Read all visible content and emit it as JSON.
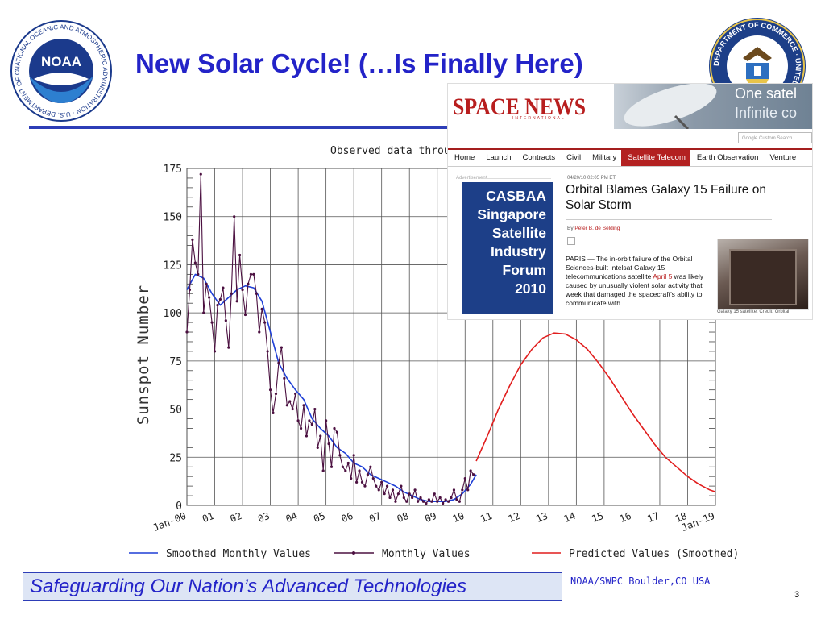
{
  "title": "New Solar Cycle! (…Is Finally Here)",
  "logos": {
    "noaa_text": "NOAA",
    "noaa_ring": "NATIONAL OCEANIC AND ATMOSPHERIC ADMINISTRATION · U.S. DEPARTMENT OF COMMERCE",
    "doc_ring": "DEPARTMENT OF COMMERCE · UNITED STATES OF AMERICA"
  },
  "chart_data": {
    "type": "line",
    "title": "Observed data throu",
    "ylabel": "Sunspot Number",
    "ylim": [
      0,
      175
    ],
    "yticks": [
      0,
      25,
      50,
      75,
      100,
      125,
      150,
      175
    ],
    "xlim": [
      2000,
      2019
    ],
    "xtick_labels": [
      "Jan-00",
      "01",
      "02",
      "03",
      "04",
      "05",
      "06",
      "07",
      "08",
      "09",
      "10",
      "11",
      "12",
      "13",
      "14",
      "15",
      "16",
      "17",
      "18",
      "Jan-19"
    ],
    "grid": true,
    "legend": "bottom",
    "series": [
      {
        "name": "Smoothed Monthly Values",
        "color": "#1f3fd6",
        "x": [
          2000.0,
          2000.3,
          2000.6,
          2000.9,
          2001.2,
          2001.5,
          2001.8,
          2002.1,
          2002.4,
          2002.7,
          2003.0,
          2003.3,
          2003.6,
          2003.9,
          2004.2,
          2004.5,
          2004.8,
          2005.1,
          2005.4,
          2005.7,
          2006.0,
          2006.3,
          2006.6,
          2006.9,
          2007.2,
          2007.5,
          2007.8,
          2008.1,
          2008.4,
          2008.7,
          2009.0,
          2009.3,
          2009.6,
          2009.9,
          2010.2,
          2010.4
        ],
        "values": [
          112,
          120,
          118,
          110,
          104,
          108,
          112,
          114,
          113,
          106,
          90,
          74,
          66,
          60,
          55,
          45,
          40,
          36,
          30,
          27,
          22,
          20,
          16,
          14,
          12,
          10,
          7,
          5,
          3,
          2,
          2,
          2,
          3,
          6,
          11,
          16
        ]
      },
      {
        "name": "Monthly Values",
        "color": "#4b1040",
        "x": [
          2000.0,
          2000.1,
          2000.2,
          2000.3,
          2000.4,
          2000.5,
          2000.6,
          2000.7,
          2000.8,
          2000.9,
          2001.0,
          2001.1,
          2001.2,
          2001.3,
          2001.4,
          2001.5,
          2001.6,
          2001.7,
          2001.8,
          2001.9,
          2002.0,
          2002.1,
          2002.2,
          2002.3,
          2002.4,
          2002.5,
          2002.6,
          2002.7,
          2002.8,
          2002.9,
          2003.0,
          2003.1,
          2003.2,
          2003.3,
          2003.4,
          2003.5,
          2003.6,
          2003.7,
          2003.8,
          2003.9,
          2004.0,
          2004.1,
          2004.2,
          2004.3,
          2004.4,
          2004.5,
          2004.6,
          2004.7,
          2004.8,
          2004.9,
          2005.0,
          2005.1,
          2005.2,
          2005.3,
          2005.4,
          2005.5,
          2005.6,
          2005.7,
          2005.8,
          2005.9,
          2006.0,
          2006.1,
          2006.2,
          2006.3,
          2006.4,
          2006.5,
          2006.6,
          2006.7,
          2006.8,
          2006.9,
          2007.0,
          2007.1,
          2007.2,
          2007.3,
          2007.4,
          2007.5,
          2007.6,
          2007.7,
          2007.8,
          2007.9,
          2008.0,
          2008.1,
          2008.2,
          2008.3,
          2008.4,
          2008.5,
          2008.6,
          2008.7,
          2008.8,
          2008.9,
          2009.0,
          2009.1,
          2009.2,
          2009.3,
          2009.4,
          2009.5,
          2009.6,
          2009.7,
          2009.8,
          2009.9,
          2010.0,
          2010.1,
          2010.2,
          2010.3
        ],
        "values": [
          90,
          112,
          138,
          126,
          120,
          172,
          100,
          115,
          108,
          95,
          80,
          104,
          107,
          113,
          96,
          82,
          110,
          150,
          106,
          130,
          112,
          99,
          115,
          120,
          120,
          110,
          90,
          102,
          95,
          80,
          60,
          48,
          58,
          74,
          82,
          66,
          52,
          54,
          50,
          58,
          44,
          40,
          52,
          36,
          44,
          42,
          50,
          30,
          36,
          18,
          44,
          32,
          20,
          40,
          38,
          26,
          20,
          18,
          22,
          14,
          26,
          12,
          18,
          12,
          10,
          16,
          20,
          14,
          10,
          8,
          12,
          6,
          10,
          4,
          8,
          2,
          6,
          10,
          4,
          2,
          6,
          4,
          8,
          2,
          4,
          2,
          1,
          3,
          2,
          6,
          2,
          4,
          1,
          3,
          2,
          4,
          8,
          3,
          2,
          8,
          14,
          8,
          18,
          16
        ]
      },
      {
        "name": "Predicted Values (Smoothed)",
        "color": "#e11d1d",
        "x": [
          2010.4,
          2010.8,
          2011.2,
          2011.6,
          2012.0,
          2012.4,
          2012.8,
          2013.2,
          2013.6,
          2014.0,
          2014.4,
          2014.8,
          2015.2,
          2015.6,
          2016.0,
          2016.4,
          2016.8,
          2017.2,
          2017.6,
          2018.0,
          2018.4,
          2018.8,
          2019.0
        ],
        "values": [
          23,
          36,
          50,
          62,
          73,
          81,
          87,
          89.5,
          89,
          86,
          81,
          74,
          66,
          57,
          48,
          40,
          32,
          25,
          20,
          15,
          11,
          8,
          7
        ]
      }
    ]
  },
  "news": {
    "logo": "SPACE NEWS",
    "logo_sub": "INTERNATIONAL",
    "banner_line1": "One satel",
    "banner_line2": "Infinite co",
    "search_placeholder": "Google Custom Search",
    "nav": [
      "Home",
      "Launch",
      "Contracts",
      "Civil",
      "Military",
      "Satellite Telecom",
      "Earth Observation",
      "Venture"
    ],
    "nav_active": "Satellite Telecom",
    "ad_label": "Advertisement",
    "ad_lines": [
      "CASBAA",
      "Singapore",
      "Satellite",
      "Industry",
      "Forum",
      "2010"
    ],
    "date": "04/20/10 02:05 PM ET",
    "headline": "Orbital Blames Galaxy 15 Failure on Solar Storm",
    "byline_prefix": "By",
    "byline_author": "Peter B. de Selding",
    "body_before": "PARIS — The in-orbit failure of the Orbital Sciences-built Intelsat Galaxy 15 telecommunications satellite ",
    "body_link": "April 5",
    "body_after": " was likely caused by unusually violent solar activity that week that damaged the spacecraft’s ability to communicate with",
    "photo_caption": "Galaxy 15 satellite. Credit: Orbital"
  },
  "footer": {
    "tagline": "Safeguarding Our Nation’s Advanced Technologies",
    "credit": "NOAA/SWPC Boulder,CO USA",
    "page_number": "3"
  }
}
